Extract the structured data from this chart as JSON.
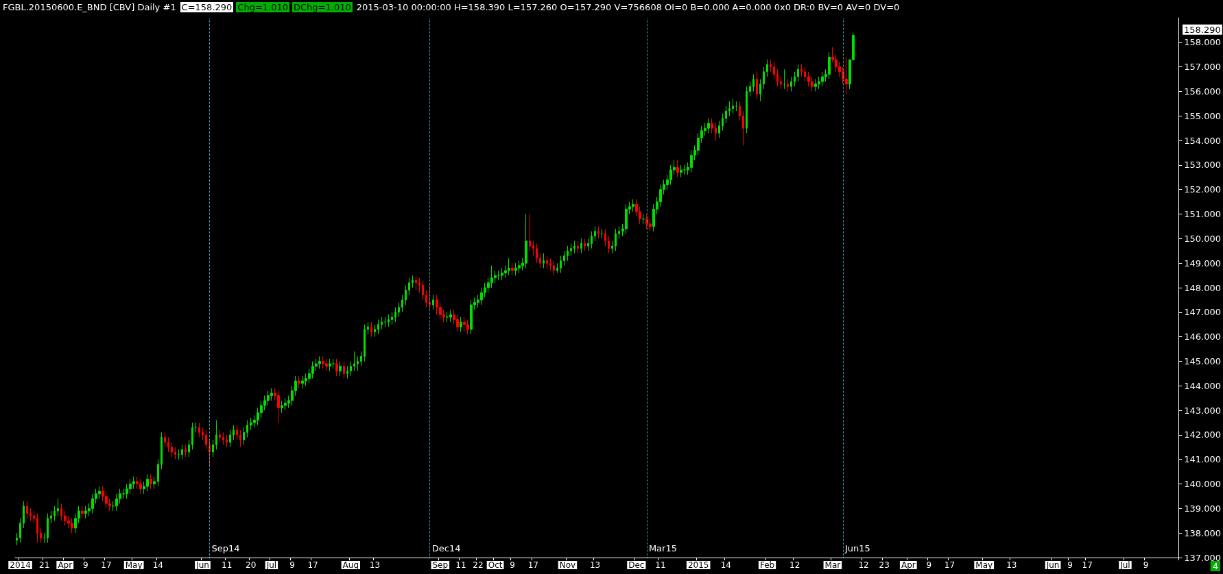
{
  "chart_data": {
    "type": "candlestick",
    "title": "FGBL.20150600.E_BND [CBV]  Daily  #1",
    "annotations": [
      "C=158.290",
      "Chg=1.010",
      "DChg=1.010",
      "2015-03-10 00:00:00 H=158.390 L=157.260 O=157.290 V=756608 OI=0 B=0.000 A=0.000 0x0 DR:0 BV=0 AV=0 DV=0",
      "158.290",
      "4",
      "Sep14",
      "Dec14",
      "Mar15",
      "Jun15"
    ],
    "ylim": [
      137,
      159
    ],
    "yticks": [
      {
        "value": 137,
        "label": "137.000"
      },
      {
        "value": 138,
        "label": "138.000"
      },
      {
        "value": 139,
        "label": "139.000"
      },
      {
        "value": 140,
        "label": "140.000"
      },
      {
        "value": 141,
        "label": "141.000"
      },
      {
        "value": 142,
        "label": "142.000"
      },
      {
        "value": 143,
        "label": "143.000"
      },
      {
        "value": 144,
        "label": "144.000"
      },
      {
        "value": 145,
        "label": "145.000"
      },
      {
        "value": 146,
        "label": "146.000"
      },
      {
        "value": 147,
        "label": "147.000"
      },
      {
        "value": 148,
        "label": "148.000"
      },
      {
        "value": 149,
        "label": "149.000"
      },
      {
        "value": 150,
        "label": "150.000"
      },
      {
        "value": 151,
        "label": "151.000"
      },
      {
        "value": 152,
        "label": "152.000"
      },
      {
        "value": 153,
        "label": "153.000"
      },
      {
        "value": 154,
        "label": "154.000"
      },
      {
        "value": 155,
        "label": "155.000"
      },
      {
        "value": 156,
        "label": "156.000"
      },
      {
        "value": 157,
        "label": "157.000"
      },
      {
        "value": 158,
        "label": "158.000"
      }
    ],
    "grid": false,
    "categories": [
      null,
      "2014",
      null,
      null,
      null,
      null,
      null,
      null,
      "21",
      null,
      null,
      null,
      null,
      null,
      "Apr",
      null,
      null,
      null,
      null,
      null,
      "9",
      null,
      null,
      null,
      null,
      null,
      "17",
      null,
      null,
      null,
      null,
      null,
      null,
      null,
      "May",
      null,
      null,
      null,
      null,
      null,
      null,
      "14",
      null,
      null,
      null,
      null,
      null,
      null,
      null,
      null,
      null,
      null,
      null,
      null,
      "Jun",
      null,
      null,
      null,
      null,
      null,
      null,
      "11",
      null,
      null,
      null,
      null,
      null,
      null,
      "20",
      null,
      null,
      null,
      null,
      null,
      "Jul",
      null,
      null,
      null,
      null,
      null,
      "9",
      null,
      null,
      null,
      null,
      null,
      "17",
      null,
      null,
      null,
      null,
      null,
      null,
      null,
      null,
      null,
      null,
      "Aug",
      null,
      null,
      null,
      null,
      null,
      null,
      "13",
      null,
      null,
      null,
      null,
      null,
      null,
      null,
      null,
      null,
      null,
      null,
      null,
      null,
      null,
      null,
      null,
      null,
      null,
      "Sep",
      null,
      null,
      null,
      null,
      null,
      "11",
      null,
      null,
      null,
      null,
      "22",
      null,
      null,
      null,
      null,
      "Oct",
      null,
      null,
      null,
      null,
      "9",
      null,
      null,
      null,
      null,
      null,
      "17",
      null,
      null,
      null,
      null,
      null,
      null,
      null,
      null,
      null,
      "Nov",
      null,
      null,
      null,
      null,
      null,
      null,
      null,
      "13",
      null,
      null,
      null,
      null,
      null,
      null,
      null,
      null,
      null,
      null,
      null,
      "Dec",
      null,
      null,
      null,
      null,
      null,
      null,
      "11",
      null,
      null,
      null,
      null,
      null,
      null,
      null,
      null,
      null,
      null,
      "2015",
      null,
      null,
      null,
      null,
      null,
      null,
      null,
      "14",
      null,
      null,
      null,
      null,
      null,
      null,
      null,
      null,
      null,
      null,
      null,
      "Feb",
      null,
      null,
      null,
      null,
      null,
      null,
      null,
      "12",
      null,
      null,
      null,
      null,
      null,
      null,
      null,
      null,
      null,
      null,
      "Mar",
      null,
      null,
      null,
      null,
      null,
      null,
      null,
      null,
      "12",
      null,
      null,
      null,
      null,
      null,
      "23",
      null,
      null,
      null,
      null,
      null,
      null,
      "Apr",
      null,
      null,
      null,
      null,
      null,
      "9",
      null,
      null,
      null,
      null,
      null,
      "17",
      null,
      null,
      null,
      null,
      null,
      null,
      null,
      null,
      null,
      "May",
      null,
      null,
      null,
      null,
      null,
      null,
      null,
      "13",
      null,
      null,
      null,
      null,
      null,
      null,
      null,
      null,
      null,
      null,
      null,
      "Jun",
      null,
      null,
      null,
      null,
      "9",
      null,
      null,
      null,
      null,
      "17",
      null,
      null,
      null,
      null,
      null,
      null,
      null,
      null,
      null,
      null,
      "Jul",
      null,
      null,
      null,
      null,
      null,
      "9",
      null,
      null,
      null,
      null,
      null,
      null,
      null,
      null,
      null
    ],
    "ohlc": [
      [
        137.7,
        138.0,
        137.5,
        137.8
      ],
      [
        137.8,
        138.6,
        137.6,
        138.4
      ],
      [
        138.4,
        139.3,
        138.2,
        139.1
      ],
      [
        139.1,
        139.3,
        138.6,
        138.8
      ],
      [
        138.8,
        139.0,
        138.5,
        138.7
      ],
      [
        138.7,
        138.9,
        138.4,
        138.6
      ],
      [
        138.6,
        138.8,
        137.6,
        138.0
      ],
      [
        138.0,
        138.2,
        137.6,
        137.8
      ],
      [
        137.8,
        138.0,
        137.6,
        137.8
      ],
      [
        137.8,
        138.8,
        137.6,
        138.6
      ],
      [
        138.6,
        138.9,
        138.4,
        138.7
      ],
      [
        138.7,
        139.1,
        138.5,
        138.9
      ],
      [
        138.9,
        139.4,
        138.7,
        139.0
      ],
      [
        139.0,
        139.2,
        138.5,
        138.7
      ],
      [
        138.7,
        138.9,
        138.3,
        138.5
      ],
      [
        138.5,
        138.7,
        138.2,
        138.4
      ],
      [
        138.4,
        138.6,
        138.0,
        138.2
      ],
      [
        138.2,
        138.8,
        138.0,
        138.6
      ],
      [
        138.6,
        139.1,
        138.4,
        138.9
      ],
      [
        138.9,
        139.1,
        138.6,
        138.8
      ],
      [
        138.8,
        139.1,
        138.6,
        138.9
      ],
      [
        138.9,
        139.2,
        138.7,
        139.0
      ],
      [
        139.0,
        139.6,
        138.8,
        139.4
      ],
      [
        139.4,
        139.8,
        139.2,
        139.6
      ],
      [
        139.6,
        139.9,
        139.4,
        139.7
      ],
      [
        139.7,
        139.9,
        139.3,
        139.5
      ],
      [
        139.5,
        139.7,
        139.0,
        139.2
      ],
      [
        139.2,
        139.4,
        138.9,
        139.1
      ],
      [
        139.1,
        139.3,
        138.9,
        139.1
      ],
      [
        139.1,
        139.6,
        138.9,
        139.4
      ],
      [
        139.4,
        139.8,
        139.2,
        139.6
      ],
      [
        139.6,
        139.8,
        139.4,
        139.6
      ],
      [
        139.6,
        140.0,
        139.4,
        139.8
      ],
      [
        139.8,
        140.2,
        139.6,
        140.0
      ],
      [
        140.0,
        140.3,
        139.8,
        140.1
      ],
      [
        140.1,
        140.3,
        139.8,
        140.0
      ],
      [
        140.0,
        140.2,
        139.6,
        139.8
      ],
      [
        139.8,
        140.1,
        139.6,
        139.9
      ],
      [
        139.9,
        140.4,
        139.7,
        140.2
      ],
      [
        140.2,
        140.4,
        139.8,
        140.0
      ],
      [
        140.0,
        140.3,
        139.8,
        140.1
      ],
      [
        140.1,
        141.0,
        139.9,
        140.8
      ],
      [
        140.8,
        142.1,
        140.6,
        141.9
      ],
      [
        141.9,
        142.1,
        141.5,
        141.7
      ],
      [
        141.7,
        141.9,
        141.3,
        141.5
      ],
      [
        141.5,
        141.7,
        141.1,
        141.3
      ],
      [
        141.3,
        141.5,
        141.0,
        141.2
      ],
      [
        141.2,
        141.4,
        141.0,
        141.2
      ],
      [
        141.2,
        141.6,
        141.0,
        141.4
      ],
      [
        141.4,
        141.6,
        141.1,
        141.3
      ],
      [
        141.3,
        141.8,
        141.1,
        141.6
      ],
      [
        141.6,
        142.5,
        141.4,
        142.3
      ],
      [
        142.3,
        142.5,
        142.1,
        142.3
      ],
      [
        142.3,
        142.5,
        141.9,
        142.1
      ],
      [
        142.1,
        142.3,
        141.8,
        142.0
      ],
      [
        142.0,
        142.2,
        141.4,
        141.6
      ],
      [
        141.6,
        141.8,
        140.7,
        141.3
      ],
      [
        141.3,
        141.8,
        141.1,
        141.6
      ],
      [
        141.6,
        142.6,
        141.4,
        142.0
      ],
      [
        142.0,
        142.2,
        141.7,
        141.9
      ],
      [
        141.9,
        142.1,
        141.6,
        141.8
      ],
      [
        141.8,
        142.0,
        141.5,
        141.7
      ],
      [
        141.7,
        142.2,
        141.5,
        142.0
      ],
      [
        142.0,
        142.4,
        141.8,
        142.2
      ],
      [
        142.2,
        142.4,
        141.8,
        142.0
      ],
      [
        142.0,
        142.2,
        141.5,
        141.8
      ],
      [
        141.8,
        142.3,
        141.6,
        142.1
      ],
      [
        142.1,
        142.6,
        141.9,
        142.4
      ],
      [
        142.4,
        142.7,
        142.2,
        142.5
      ],
      [
        142.5,
        142.8,
        142.3,
        142.6
      ],
      [
        142.6,
        143.1,
        142.4,
        142.9
      ],
      [
        142.9,
        143.4,
        142.7,
        143.2
      ],
      [
        143.2,
        143.6,
        143.0,
        143.4
      ],
      [
        143.4,
        143.8,
        143.2,
        143.6
      ],
      [
        143.6,
        143.9,
        143.4,
        143.7
      ],
      [
        143.7,
        143.9,
        143.4,
        143.6
      ],
      [
        143.6,
        143.8,
        142.5,
        143.1
      ],
      [
        143.1,
        143.4,
        142.9,
        143.2
      ],
      [
        143.2,
        143.5,
        143.0,
        143.3
      ],
      [
        143.3,
        143.6,
        143.1,
        143.4
      ],
      [
        143.4,
        144.0,
        143.2,
        143.8
      ],
      [
        143.8,
        144.4,
        143.6,
        144.2
      ],
      [
        144.2,
        144.4,
        143.9,
        144.1
      ],
      [
        144.1,
        144.4,
        143.9,
        144.2
      ],
      [
        144.2,
        144.5,
        144.0,
        144.3
      ],
      [
        144.3,
        144.7,
        144.1,
        144.5
      ],
      [
        144.5,
        145.0,
        144.3,
        144.8
      ],
      [
        144.8,
        145.1,
        144.6,
        144.9
      ],
      [
        144.9,
        145.2,
        144.7,
        145.0
      ],
      [
        145.0,
        145.2,
        144.7,
        144.9
      ],
      [
        144.9,
        145.1,
        144.6,
        144.8
      ],
      [
        144.8,
        145.1,
        144.6,
        144.9
      ],
      [
        144.9,
        145.1,
        144.7,
        144.9
      ],
      [
        144.9,
        145.1,
        144.4,
        144.6
      ],
      [
        144.6,
        145.0,
        144.4,
        144.8
      ],
      [
        144.8,
        145.0,
        144.3,
        144.5
      ],
      [
        144.5,
        144.8,
        144.3,
        144.6
      ],
      [
        144.6,
        145.0,
        144.4,
        144.8
      ],
      [
        144.8,
        145.4,
        144.6,
        144.9
      ],
      [
        144.9,
        145.2,
        144.6,
        145.0
      ],
      [
        145.0,
        145.4,
        144.8,
        145.2
      ],
      [
        145.2,
        146.5,
        145.0,
        146.3
      ],
      [
        146.3,
        146.6,
        146.1,
        146.4
      ],
      [
        146.4,
        146.6,
        146.0,
        146.2
      ],
      [
        146.2,
        146.5,
        146.0,
        146.3
      ],
      [
        146.3,
        146.7,
        146.1,
        146.5
      ],
      [
        146.5,
        146.8,
        146.3,
        146.6
      ],
      [
        146.6,
        146.8,
        146.4,
        146.6
      ],
      [
        146.6,
        146.9,
        146.4,
        146.7
      ],
      [
        146.7,
        147.0,
        146.5,
        146.8
      ],
      [
        146.8,
        147.2,
        146.6,
        147.0
      ],
      [
        147.0,
        147.4,
        146.8,
        147.2
      ],
      [
        147.2,
        147.7,
        147.0,
        147.5
      ],
      [
        147.5,
        148.1,
        147.3,
        147.9
      ],
      [
        147.9,
        148.4,
        147.7,
        148.2
      ],
      [
        148.2,
        148.5,
        148.0,
        148.3
      ],
      [
        148.3,
        148.5,
        147.9,
        148.2
      ],
      [
        148.2,
        148.4,
        147.8,
        148.1
      ],
      [
        148.1,
        148.3,
        147.5,
        147.7
      ],
      [
        147.7,
        147.9,
        147.2,
        147.4
      ],
      [
        147.4,
        148.1,
        147.1,
        147.3
      ],
      [
        147.3,
        147.7,
        147.1,
        147.5
      ],
      [
        147.5,
        147.7,
        146.9,
        147.2
      ],
      [
        147.2,
        147.4,
        146.7,
        146.9
      ],
      [
        146.9,
        147.1,
        146.6,
        146.8
      ],
      [
        146.8,
        147.0,
        146.6,
        146.8
      ],
      [
        146.8,
        147.1,
        146.6,
        146.9
      ],
      [
        146.9,
        147.1,
        146.5,
        146.7
      ],
      [
        146.7,
        146.9,
        146.2,
        146.4
      ],
      [
        146.4,
        146.8,
        146.2,
        146.6
      ],
      [
        146.6,
        146.8,
        146.2,
        146.5
      ],
      [
        146.5,
        146.7,
        146.1,
        146.3
      ],
      [
        146.3,
        147.5,
        146.1,
        147.3
      ],
      [
        147.3,
        147.6,
        147.1,
        147.4
      ],
      [
        147.4,
        147.7,
        147.2,
        147.5
      ],
      [
        147.5,
        148.0,
        147.3,
        147.8
      ],
      [
        147.8,
        148.2,
        147.6,
        148.0
      ],
      [
        148.0,
        148.4,
        147.8,
        148.2
      ],
      [
        148.2,
        148.9,
        148.0,
        148.4
      ],
      [
        148.4,
        148.7,
        148.2,
        148.5
      ],
      [
        148.5,
        148.7,
        148.3,
        148.5
      ],
      [
        148.5,
        148.8,
        148.3,
        148.6
      ],
      [
        148.6,
        148.9,
        148.4,
        148.7
      ],
      [
        148.7,
        149.2,
        148.5,
        148.8
      ],
      [
        148.8,
        149.0,
        148.5,
        148.7
      ],
      [
        148.7,
        149.0,
        148.5,
        148.8
      ],
      [
        148.8,
        149.1,
        148.6,
        148.9
      ],
      [
        148.9,
        149.2,
        148.7,
        149.0
      ],
      [
        149.0,
        151.0,
        148.8,
        149.9
      ],
      [
        149.9,
        151.0,
        149.5,
        149.7
      ],
      [
        149.7,
        149.9,
        149.3,
        149.6
      ],
      [
        149.6,
        149.8,
        149.0,
        149.2
      ],
      [
        149.2,
        149.4,
        148.8,
        149.0
      ],
      [
        149.0,
        149.4,
        148.8,
        149.1
      ],
      [
        149.1,
        149.3,
        148.8,
        149.0
      ],
      [
        149.0,
        149.2,
        148.7,
        148.9
      ],
      [
        148.9,
        149.1,
        148.5,
        148.7
      ],
      [
        148.7,
        149.0,
        148.6,
        148.8
      ],
      [
        148.8,
        149.3,
        148.6,
        149.1
      ],
      [
        149.1,
        149.5,
        148.9,
        149.3
      ],
      [
        149.3,
        149.7,
        149.1,
        149.5
      ],
      [
        149.5,
        149.8,
        149.3,
        149.6
      ],
      [
        149.6,
        149.9,
        149.4,
        149.7
      ],
      [
        149.7,
        149.9,
        149.4,
        149.6
      ],
      [
        149.6,
        150.0,
        149.4,
        149.8
      ],
      [
        149.8,
        150.0,
        149.5,
        149.7
      ],
      [
        149.7,
        150.0,
        149.5,
        149.8
      ],
      [
        149.8,
        150.3,
        149.6,
        150.1
      ],
      [
        150.1,
        150.5,
        149.9,
        150.3
      ],
      [
        150.3,
        150.5,
        150.0,
        150.2
      ],
      [
        150.2,
        150.4,
        150.0,
        150.2
      ],
      [
        150.2,
        150.4,
        149.7,
        149.9
      ],
      [
        149.9,
        150.1,
        149.4,
        149.6
      ],
      [
        149.6,
        149.9,
        149.4,
        149.7
      ],
      [
        149.7,
        150.4,
        149.5,
        150.2
      ],
      [
        150.2,
        150.5,
        150.0,
        150.3
      ],
      [
        150.3,
        150.6,
        150.1,
        150.4
      ],
      [
        150.4,
        151.4,
        150.2,
        151.2
      ],
      [
        151.2,
        151.5,
        151.0,
        151.3
      ],
      [
        151.3,
        151.6,
        151.1,
        151.4
      ],
      [
        151.4,
        151.6,
        150.9,
        151.1
      ],
      [
        151.1,
        151.3,
        150.6,
        150.8
      ],
      [
        150.8,
        151.0,
        150.6,
        150.8
      ],
      [
        150.8,
        151.0,
        150.4,
        150.6
      ],
      [
        150.6,
        150.8,
        150.3,
        150.5
      ],
      [
        150.5,
        151.4,
        150.3,
        151.2
      ],
      [
        151.2,
        151.7,
        151.0,
        151.5
      ],
      [
        151.5,
        152.2,
        151.3,
        152.0
      ],
      [
        152.0,
        152.4,
        151.8,
        152.2
      ],
      [
        152.2,
        152.6,
        152.0,
        152.4
      ],
      [
        152.4,
        153.0,
        152.2,
        152.8
      ],
      [
        152.8,
        153.2,
        152.6,
        152.9
      ],
      [
        152.9,
        153.2,
        152.5,
        152.7
      ],
      [
        152.7,
        153.0,
        152.5,
        152.8
      ],
      [
        152.8,
        153.0,
        152.6,
        152.8
      ],
      [
        152.8,
        153.1,
        152.6,
        152.9
      ],
      [
        152.9,
        153.6,
        152.7,
        153.4
      ],
      [
        153.4,
        153.8,
        153.2,
        153.6
      ],
      [
        153.6,
        154.3,
        153.4,
        154.1
      ],
      [
        154.1,
        154.6,
        153.9,
        154.4
      ],
      [
        154.4,
        154.7,
        154.2,
        154.5
      ],
      [
        154.5,
        154.9,
        154.3,
        154.7
      ],
      [
        154.7,
        154.9,
        154.3,
        154.5
      ],
      [
        154.5,
        154.7,
        154.0,
        154.3
      ],
      [
        154.3,
        154.8,
        154.1,
        154.6
      ],
      [
        154.6,
        155.1,
        154.4,
        154.9
      ],
      [
        154.9,
        155.4,
        154.7,
        155.2
      ],
      [
        155.2,
        155.6,
        155.0,
        155.3
      ],
      [
        155.3,
        155.7,
        155.1,
        155.4
      ],
      [
        155.4,
        155.6,
        155.2,
        155.4
      ],
      [
        155.4,
        155.6,
        154.8,
        155.0
      ],
      [
        155.0,
        155.2,
        153.8,
        154.5
      ],
      [
        154.5,
        156.2,
        154.3,
        156.0
      ],
      [
        156.0,
        156.4,
        155.8,
        156.2
      ],
      [
        156.2,
        156.7,
        156.0,
        156.5
      ],
      [
        156.5,
        156.8,
        155.7,
        155.9
      ],
      [
        155.9,
        156.5,
        155.6,
        156.3
      ],
      [
        156.3,
        157.0,
        156.1,
        156.8
      ],
      [
        156.8,
        157.3,
        156.6,
        157.1
      ],
      [
        157.1,
        157.3,
        156.8,
        157.0
      ],
      [
        157.0,
        157.2,
        156.5,
        156.7
      ],
      [
        156.7,
        156.9,
        156.2,
        156.4
      ],
      [
        156.4,
        156.6,
        156.1,
        156.3
      ],
      [
        156.3,
        156.9,
        156.1,
        156.3
      ],
      [
        156.3,
        156.5,
        156.0,
        156.2
      ],
      [
        156.2,
        156.6,
        156.0,
        156.4
      ],
      [
        156.4,
        156.8,
        156.2,
        156.6
      ],
      [
        156.6,
        157.1,
        156.4,
        156.9
      ],
      [
        156.9,
        157.1,
        156.6,
        156.8
      ],
      [
        156.8,
        157.0,
        156.4,
        156.6
      ],
      [
        156.6,
        156.8,
        156.2,
        156.4
      ],
      [
        156.4,
        156.6,
        156.0,
        156.2
      ],
      [
        156.2,
        156.5,
        156.0,
        156.3
      ],
      [
        156.3,
        156.6,
        156.1,
        156.4
      ],
      [
        156.4,
        156.8,
        156.2,
        156.6
      ],
      [
        156.6,
        156.9,
        156.4,
        156.7
      ],
      [
        156.7,
        157.6,
        156.5,
        157.4
      ],
      [
        157.4,
        157.8,
        157.2,
        157.3
      ],
      [
        157.3,
        157.5,
        156.8,
        157.0
      ],
      [
        157.0,
        157.2,
        156.6,
        156.8
      ],
      [
        156.8,
        157.0,
        156.3,
        156.5
      ],
      [
        156.5,
        157.4,
        155.9,
        156.3
      ],
      [
        156.3,
        157.3,
        156.1,
        157.29
      ],
      [
        157.29,
        158.39,
        157.26,
        158.29
      ],
      null,
      null,
      null,
      null,
      null,
      null,
      null,
      null,
      null,
      null,
      null,
      null,
      null,
      null,
      null,
      null,
      null,
      null,
      null,
      null,
      null,
      null,
      null,
      null,
      null,
      null,
      null,
      null,
      null,
      null,
      null,
      null,
      null,
      null,
      null,
      null,
      null,
      null,
      null,
      null,
      null,
      null,
      null,
      null,
      null,
      null,
      null,
      null,
      null,
      null,
      null,
      null,
      null,
      null,
      null,
      null,
      null,
      null,
      null,
      null,
      null,
      null,
      null,
      null,
      null,
      null,
      null,
      null,
      null,
      null,
      null,
      null,
      null,
      null,
      null,
      null,
      null,
      null,
      null,
      null,
      null,
      null,
      null,
      null,
      null,
      null,
      null,
      null,
      null,
      null,
      null,
      null,
      null,
      null
    ]
  }
}
